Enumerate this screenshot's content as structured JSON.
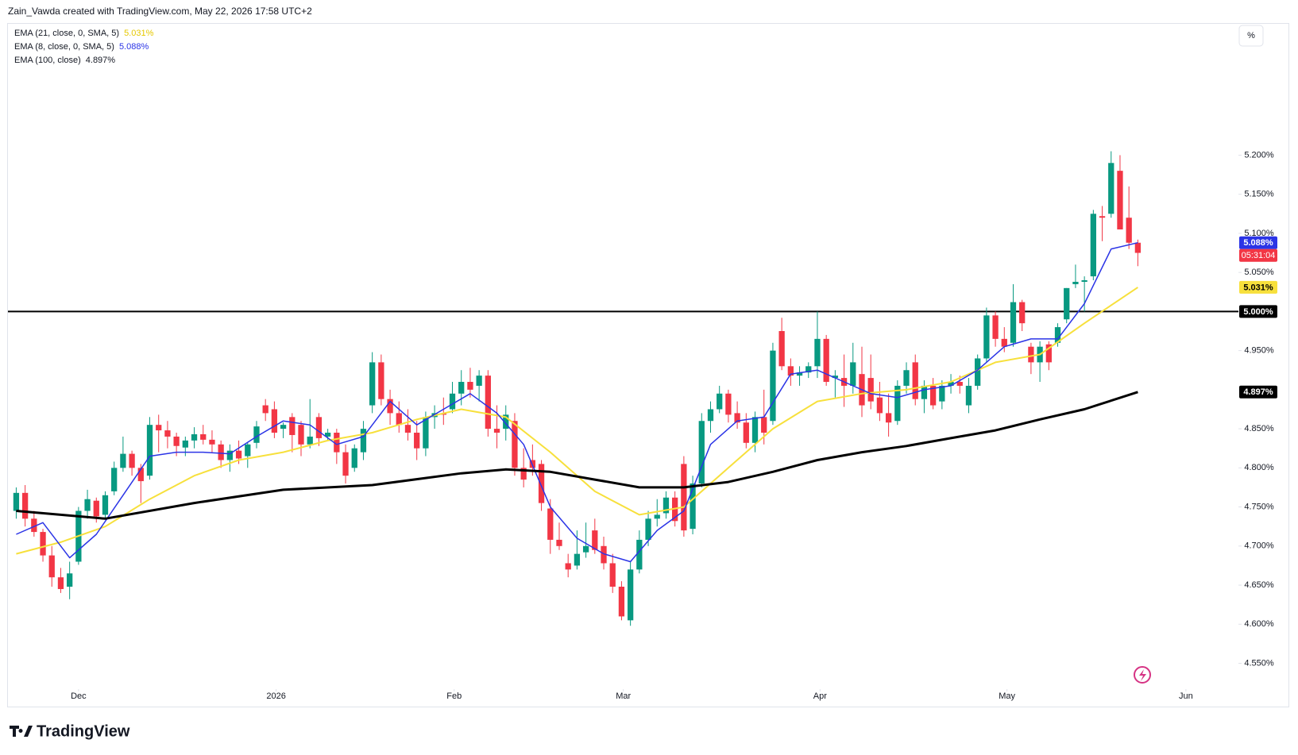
{
  "header": "Zain_Vawda created with TradingView.com, May 22, 2026 17:58 UTC+2",
  "logo": "TradingView",
  "scale_button": "%",
  "chart_data": {
    "type": "candlestick",
    "up_color": "#089981",
    "down_color": "#f23645",
    "xlim": [
      -0.93,
      137.3
    ],
    "xticks": [
      {
        "value": 7,
        "label": "Dec"
      },
      {
        "value": 29.2,
        "label": "2026"
      },
      {
        "value": 49.2,
        "label": "Feb"
      },
      {
        "value": 68.2,
        "label": "Mar"
      },
      {
        "value": 90.3,
        "label": "Apr"
      },
      {
        "value": 111.3,
        "label": "May"
      },
      {
        "value": 131.4,
        "label": "Jun"
      }
    ],
    "ylim": [
      4.517,
      5.367
    ],
    "yticks": [
      {
        "value": 4.55,
        "label": "4.550%"
      },
      {
        "value": 4.6,
        "label": "4.600%"
      },
      {
        "value": 4.65,
        "label": "4.650%"
      },
      {
        "value": 4.7,
        "label": "4.700%"
      },
      {
        "value": 4.75,
        "label": "4.750%"
      },
      {
        "value": 4.8,
        "label": "4.800%"
      },
      {
        "value": 4.85,
        "label": "4.850%"
      },
      {
        "value": 4.9,
        "label": "4.900%"
      },
      {
        "value": 4.95,
        "label": "4.950%"
      },
      {
        "value": 5.0,
        "label": "5.000%"
      },
      {
        "value": 5.05,
        "label": "5.050%"
      },
      {
        "value": 5.1,
        "label": "5.100%"
      },
      {
        "value": 5.15,
        "label": "5.150%"
      },
      {
        "value": 5.2,
        "label": "5.200%"
      }
    ],
    "hline": {
      "value": 5.0,
      "label": "5.000%",
      "color": "#000000"
    },
    "countdown": "05:31:04",
    "ohlc": [
      [
        4.745,
        4.775,
        4.735,
        4.768
      ],
      [
        4.768,
        4.778,
        4.725,
        4.735
      ],
      [
        4.735,
        4.745,
        4.712,
        4.718
      ],
      [
        4.718,
        4.722,
        4.68,
        4.688
      ],
      [
        4.688,
        4.7,
        4.648,
        4.66
      ],
      [
        4.66,
        4.672,
        4.64,
        4.645
      ],
      [
        4.648,
        4.68,
        4.632,
        4.665
      ],
      [
        4.68,
        4.75,
        4.676,
        4.745
      ],
      [
        4.745,
        4.772,
        4.735,
        4.76
      ],
      [
        4.758,
        4.762,
        4.73,
        4.738
      ],
      [
        4.74,
        4.77,
        4.735,
        4.765
      ],
      [
        4.77,
        4.808,
        4.765,
        4.8
      ],
      [
        4.8,
        4.84,
        4.795,
        4.818
      ],
      [
        4.818,
        4.822,
        4.79,
        4.8
      ],
      [
        4.8,
        4.805,
        4.755,
        4.783
      ],
      [
        4.79,
        4.865,
        4.785,
        4.855
      ],
      [
        4.855,
        4.868,
        4.82,
        4.848
      ],
      [
        4.848,
        4.86,
        4.825,
        4.84
      ],
      [
        4.84,
        4.845,
        4.815,
        4.828
      ],
      [
        4.826,
        4.84,
        4.815,
        4.835
      ],
      [
        4.835,
        4.852,
        4.825,
        4.843
      ],
      [
        4.843,
        4.855,
        4.83,
        4.836
      ],
      [
        4.836,
        4.848,
        4.82,
        4.83
      ],
      [
        4.83,
        4.835,
        4.8,
        4.81
      ],
      [
        4.81,
        4.83,
        4.795,
        4.822
      ],
      [
        4.822,
        4.835,
        4.805,
        4.812
      ],
      [
        4.815,
        4.832,
        4.8,
        4.83
      ],
      [
        4.832,
        4.86,
        4.825,
        4.853
      ],
      [
        4.88,
        4.888,
        4.86,
        4.87
      ],
      [
        4.875,
        4.885,
        4.838,
        4.845
      ],
      [
        4.85,
        4.858,
        4.838,
        4.855
      ],
      [
        4.865,
        4.87,
        4.82,
        4.842
      ],
      [
        4.855,
        4.86,
        4.815,
        4.83
      ],
      [
        4.83,
        4.888,
        4.825,
        4.84
      ],
      [
        4.865,
        4.87,
        4.828,
        4.838
      ],
      [
        4.84,
        4.85,
        4.835,
        4.845
      ],
      [
        4.845,
        4.85,
        4.805,
        4.82
      ],
      [
        4.82,
        4.83,
        4.78,
        4.79
      ],
      [
        4.8,
        4.83,
        4.795,
        4.825
      ],
      [
        4.82,
        4.86,
        4.81,
        4.85
      ],
      [
        4.88,
        4.948,
        4.87,
        4.935
      ],
      [
        4.935,
        4.945,
        4.88,
        4.888
      ],
      [
        4.888,
        4.9,
        4.855,
        4.87
      ],
      [
        4.87,
        4.885,
        4.845,
        4.855
      ],
      [
        4.855,
        4.875,
        4.835,
        4.845
      ],
      [
        4.845,
        4.86,
        4.81,
        4.825
      ],
      [
        4.825,
        4.872,
        4.815,
        4.865
      ],
      [
        4.865,
        4.88,
        4.85,
        4.87
      ],
      [
        4.87,
        4.89,
        4.855,
        4.868
      ],
      [
        4.875,
        4.91,
        4.87,
        4.895
      ],
      [
        4.895,
        4.925,
        4.88,
        4.91
      ],
      [
        4.91,
        4.928,
        4.89,
        4.9
      ],
      [
        4.905,
        4.925,
        4.885,
        4.918
      ],
      [
        4.918,
        4.925,
        4.84,
        4.85
      ],
      [
        4.85,
        4.88,
        4.825,
        4.845
      ],
      [
        4.85,
        4.88,
        4.835,
        4.868
      ],
      [
        4.86,
        4.87,
        4.79,
        4.8
      ],
      [
        4.8,
        4.825,
        4.775,
        4.785
      ],
      [
        4.81,
        4.83,
        4.79,
        4.8
      ],
      [
        4.805,
        4.81,
        4.745,
        4.755
      ],
      [
        4.748,
        4.76,
        4.69,
        4.708
      ],
      [
        4.708,
        4.73,
        4.695,
        4.7
      ],
      [
        4.678,
        4.69,
        4.66,
        4.67
      ],
      [
        4.675,
        4.72,
        4.67,
        4.69
      ],
      [
        4.692,
        4.73,
        4.685,
        4.7
      ],
      [
        4.72,
        4.735,
        4.69,
        4.695
      ],
      [
        4.7,
        4.712,
        4.67,
        4.678
      ],
      [
        4.678,
        4.69,
        4.64,
        4.648
      ],
      [
        4.648,
        4.655,
        4.605,
        4.61
      ],
      [
        4.605,
        4.68,
        4.598,
        4.67
      ],
      [
        4.67,
        4.72,
        4.665,
        4.708
      ],
      [
        4.708,
        4.745,
        4.7,
        4.735
      ],
      [
        4.735,
        4.76,
        4.725,
        4.74
      ],
      [
        4.742,
        4.77,
        4.735,
        4.762
      ],
      [
        4.762,
        4.77,
        4.725,
        4.732
      ],
      [
        4.805,
        4.815,
        4.712,
        4.72
      ],
      [
        4.722,
        4.79,
        4.715,
        4.78
      ],
      [
        4.78,
        4.87,
        4.775,
        4.86
      ],
      [
        4.86,
        4.885,
        4.845,
        4.875
      ],
      [
        4.875,
        4.905,
        4.87,
        4.895
      ],
      [
        4.895,
        4.9,
        4.858,
        4.868
      ],
      [
        4.87,
        4.885,
        4.85,
        4.858
      ],
      [
        4.858,
        4.87,
        4.825,
        4.832
      ],
      [
        4.832,
        4.872,
        4.82,
        4.865
      ],
      [
        4.865,
        4.9,
        4.83,
        4.845
      ],
      [
        4.86,
        4.96,
        4.855,
        4.95
      ],
      [
        4.975,
        4.992,
        4.925,
        4.93
      ],
      [
        4.93,
        4.94,
        4.905,
        4.918
      ],
      [
        4.918,
        4.93,
        4.905,
        4.922
      ],
      [
        4.922,
        4.935,
        4.915,
        4.93
      ],
      [
        4.93,
        5.0,
        4.915,
        4.965
      ],
      [
        4.965,
        4.97,
        4.905,
        4.91
      ],
      [
        4.915,
        4.925,
        4.89,
        4.918
      ],
      [
        4.915,
        4.945,
        4.878,
        4.905
      ],
      [
        4.905,
        4.96,
        4.895,
        4.935
      ],
      [
        4.92,
        4.955,
        4.865,
        4.88
      ],
      [
        4.915,
        4.945,
        4.875,
        4.885
      ],
      [
        4.89,
        4.91,
        4.86,
        4.87
      ],
      [
        4.87,
        4.895,
        4.84,
        4.858
      ],
      [
        4.86,
        4.912,
        4.855,
        4.905
      ],
      [
        4.905,
        4.935,
        4.895,
        4.925
      ],
      [
        4.935,
        4.945,
        4.88,
        4.888
      ],
      [
        4.888,
        4.912,
        4.87,
        4.905
      ],
      [
        4.905,
        4.915,
        4.875,
        4.88
      ],
      [
        4.885,
        4.912,
        4.875,
        4.905
      ],
      [
        4.905,
        4.92,
        4.895,
        4.91
      ],
      [
        4.91,
        4.918,
        4.895,
        4.905
      ],
      [
        4.88,
        4.915,
        4.87,
        4.905
      ],
      [
        4.905,
        4.945,
        4.9,
        4.94
      ],
      [
        4.94,
        5.005,
        4.935,
        4.995
      ],
      [
        4.995,
        5.0,
        4.955,
        4.965
      ],
      [
        4.965,
        4.98,
        4.948,
        4.955
      ],
      [
        4.96,
        5.035,
        4.955,
        5.012
      ],
      [
        5.012,
        5.015,
        4.975,
        4.985
      ],
      [
        4.955,
        4.96,
        4.92,
        4.935
      ],
      [
        4.935,
        4.962,
        4.91,
        4.955
      ],
      [
        4.958,
        4.962,
        4.925,
        4.935
      ],
      [
        4.96,
        4.985,
        4.955,
        4.98
      ],
      [
        4.99,
        5.03,
        4.985,
        5.03
      ],
      [
        5.035,
        5.06,
        5.03,
        5.038
      ],
      [
        5.038,
        5.045,
        5.0,
        5.04
      ],
      [
        5.045,
        5.13,
        5.04,
        5.125
      ],
      [
        5.122,
        5.135,
        5.09,
        5.12
      ],
      [
        5.125,
        5.205,
        5.12,
        5.19
      ],
      [
        5.18,
        5.2,
        5.105,
        5.105
      ],
      [
        5.12,
        5.16,
        5.08,
        5.088
      ],
      [
        5.088,
        5.092,
        5.058,
        5.075
      ]
    ],
    "series": [
      {
        "name": "EMA (21, close, 0, SMA, 5)",
        "color": "#f7e03c",
        "text_color": "#e6c800",
        "badge_text": "#000000",
        "width": 2,
        "x": [
          0,
          5,
          10,
          15,
          20,
          25,
          30,
          35,
          40,
          45,
          50,
          55,
          60,
          65,
          70,
          75,
          80,
          85,
          90,
          95,
          100,
          105,
          110,
          115,
          120,
          126
        ],
        "values": [
          4.69,
          4.705,
          4.725,
          4.76,
          4.79,
          4.81,
          4.82,
          4.835,
          4.845,
          4.862,
          4.875,
          4.865,
          4.82,
          4.77,
          4.74,
          4.75,
          4.8,
          4.85,
          4.885,
          4.895,
          4.9,
          4.91,
          4.935,
          4.945,
          4.985,
          5.031
        ],
        "value_label": "5.031%"
      },
      {
        "name": "EMA (8, close, 0, SMA, 5)",
        "color": "#2b34e6",
        "text_color": "#2b34e6",
        "badge_text": "#ffffff",
        "width": 1.5,
        "x": [
          0,
          3,
          6,
          9,
          12,
          15,
          18,
          21,
          24,
          27,
          30,
          33,
          36,
          39,
          42,
          45,
          48,
          51,
          54,
          57,
          60,
          63,
          66,
          69,
          72,
          75,
          78,
          81,
          84,
          87,
          90,
          93,
          96,
          99,
          102,
          105,
          108,
          111,
          114,
          117,
          120,
          123,
          126
        ],
        "values": [
          4.715,
          4.73,
          4.685,
          4.715,
          4.765,
          4.815,
          4.82,
          4.82,
          4.818,
          4.84,
          4.86,
          4.855,
          4.83,
          4.84,
          4.885,
          4.855,
          4.875,
          4.895,
          4.87,
          4.83,
          4.75,
          4.71,
          4.69,
          4.68,
          4.72,
          4.745,
          4.83,
          4.86,
          4.865,
          4.92,
          4.925,
          4.91,
          4.895,
          4.89,
          4.9,
          4.905,
          4.925,
          4.955,
          4.965,
          4.965,
          5.01,
          5.08,
          5.088
        ],
        "value_label": "5.088%"
      },
      {
        "name": "EMA (100, close)",
        "color": "#000000",
        "text_color": "#131722",
        "badge_text": "#ffffff",
        "width": 3,
        "x": [
          0,
          10,
          20,
          30,
          40,
          50,
          55,
          60,
          65,
          70,
          75,
          80,
          85,
          90,
          95,
          100,
          105,
          110,
          115,
          120,
          126
        ],
        "values": [
          4.745,
          4.735,
          4.755,
          4.772,
          4.778,
          4.793,
          4.798,
          4.795,
          4.785,
          4.775,
          4.775,
          4.782,
          4.795,
          4.81,
          4.82,
          4.828,
          4.838,
          4.848,
          4.862,
          4.875,
          4.897
        ],
        "value_label": "4.897%"
      }
    ]
  }
}
